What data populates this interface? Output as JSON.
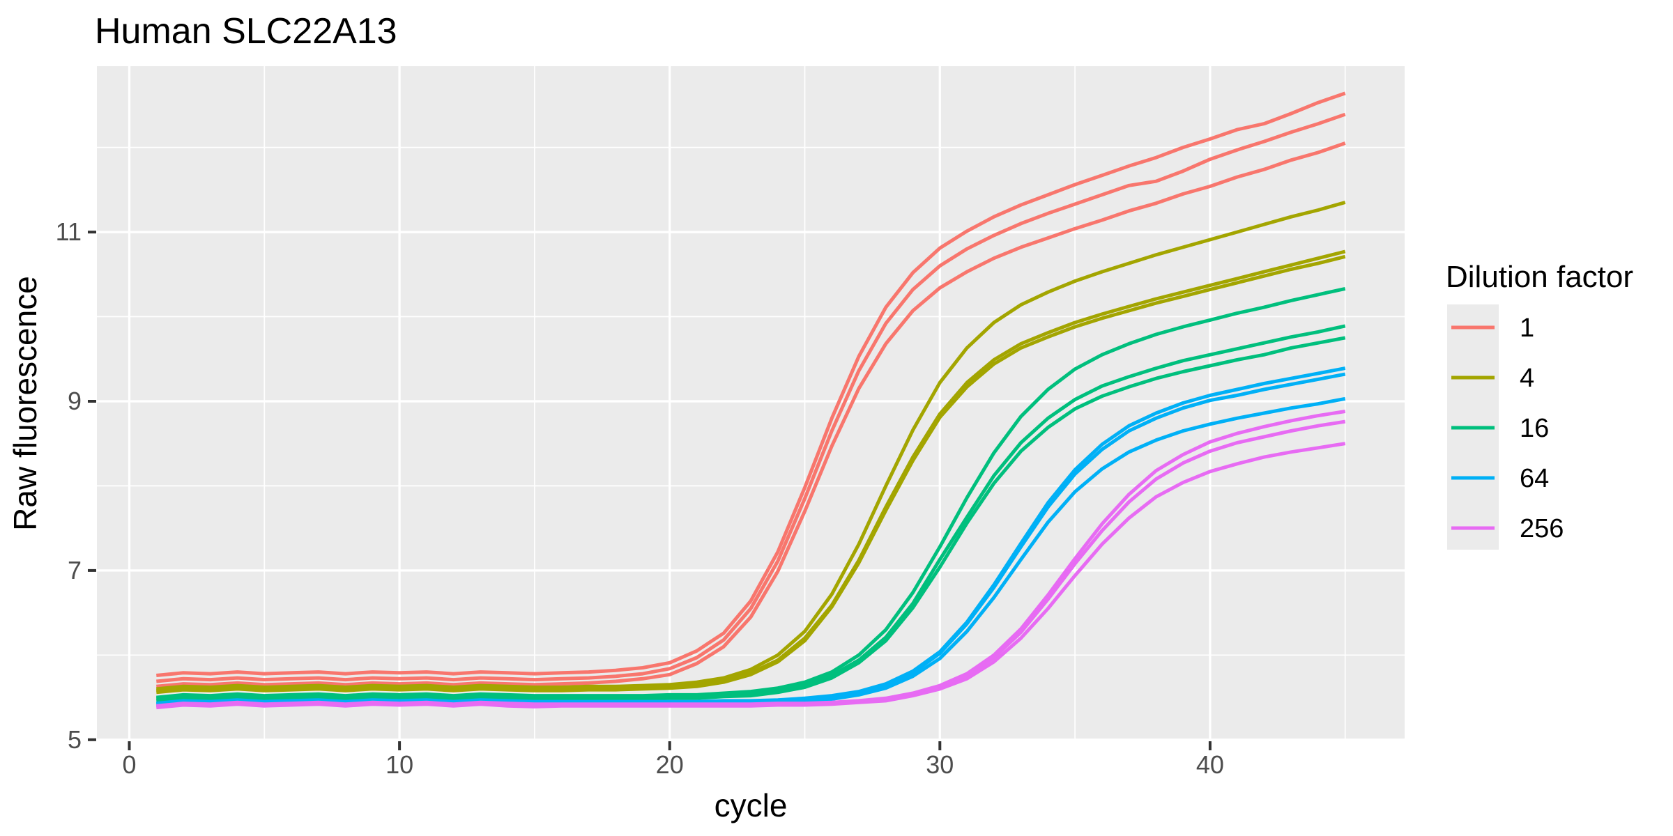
{
  "chart_data": {
    "type": "line",
    "title": "Human SLC22A13",
    "xlabel": "cycle",
    "ylabel": "Raw fluorescence",
    "x_major_ticks": [
      0,
      10,
      20,
      30,
      40
    ],
    "x_minor_ticks": [
      5,
      15,
      25,
      35,
      45
    ],
    "y_major_ticks": [
      5,
      7,
      9,
      11
    ],
    "y_minor_ticks": [
      6,
      8,
      10,
      12
    ],
    "xlim": [
      -1.2,
      47.2
    ],
    "ylim": [
      4.99,
      12.96
    ],
    "grid": "on",
    "panel_bg": "#EBEBEB",
    "grid_color": "#FFFFFF",
    "tick_mark_color": "#333333",
    "tick_label_color": "#4D4D4D",
    "legend": {
      "title": "Dilution factor",
      "position": "right",
      "key_bg": "#EBEBEB"
    },
    "cycles": [
      1,
      2,
      3,
      4,
      5,
      6,
      7,
      8,
      9,
      10,
      11,
      12,
      13,
      14,
      15,
      16,
      17,
      18,
      19,
      20,
      21,
      22,
      23,
      24,
      25,
      26,
      27,
      28,
      29,
      30,
      31,
      32,
      33,
      34,
      35,
      36,
      37,
      38,
      39,
      40,
      41,
      42,
      43,
      44,
      45
    ],
    "series": [
      {
        "name": "1",
        "color": "#F8766D",
        "replicates": [
          [
            5.76,
            5.79,
            5.78,
            5.8,
            5.78,
            5.79,
            5.8,
            5.78,
            5.8,
            5.79,
            5.8,
            5.78,
            5.8,
            5.79,
            5.78,
            5.79,
            5.8,
            5.82,
            5.85,
            5.91,
            6.05,
            6.26,
            6.64,
            7.22,
            7.98,
            8.8,
            9.53,
            10.11,
            10.52,
            10.81,
            11.01,
            11.18,
            11.32,
            11.44,
            11.56,
            11.67,
            11.78,
            11.88,
            12.0,
            12.1,
            12.21,
            12.28,
            12.4,
            12.53,
            12.64
          ],
          [
            5.69,
            5.72,
            5.71,
            5.73,
            5.71,
            5.72,
            5.73,
            5.71,
            5.73,
            5.72,
            5.73,
            5.71,
            5.73,
            5.72,
            5.71,
            5.72,
            5.73,
            5.75,
            5.78,
            5.84,
            5.97,
            6.18,
            6.55,
            7.11,
            7.85,
            8.65,
            9.36,
            9.92,
            10.32,
            10.6,
            10.8,
            10.96,
            11.1,
            11.22,
            11.33,
            11.44,
            11.55,
            11.6,
            11.72,
            11.86,
            11.97,
            12.07,
            12.18,
            12.28,
            12.39
          ],
          [
            5.63,
            5.66,
            5.65,
            5.67,
            5.65,
            5.66,
            5.67,
            5.65,
            5.67,
            5.66,
            5.67,
            5.65,
            5.67,
            5.66,
            5.65,
            5.66,
            5.67,
            5.69,
            5.72,
            5.77,
            5.9,
            6.1,
            6.45,
            6.99,
            7.7,
            8.47,
            9.15,
            9.68,
            10.07,
            10.34,
            10.53,
            10.69,
            10.82,
            10.93,
            11.04,
            11.14,
            11.25,
            11.34,
            11.45,
            11.54,
            11.65,
            11.74,
            11.85,
            11.94,
            12.05
          ]
        ]
      },
      {
        "name": "4",
        "color": "#A3A500",
        "replicates": [
          [
            5.6,
            5.63,
            5.62,
            5.64,
            5.62,
            5.63,
            5.64,
            5.62,
            5.64,
            5.63,
            5.64,
            5.62,
            5.64,
            5.63,
            5.62,
            5.62,
            5.63,
            5.63,
            5.64,
            5.65,
            5.68,
            5.73,
            5.83,
            6.0,
            6.28,
            6.72,
            7.31,
            8.0,
            8.66,
            9.22,
            9.63,
            9.93,
            10.14,
            10.29,
            10.42,
            10.53,
            10.63,
            10.73,
            10.82,
            10.91,
            11.0,
            11.09,
            11.18,
            11.26,
            11.35
          ],
          [
            5.58,
            5.61,
            5.6,
            5.62,
            5.6,
            5.61,
            5.62,
            5.6,
            5.62,
            5.61,
            5.62,
            5.6,
            5.62,
            5.61,
            5.6,
            5.6,
            5.61,
            5.61,
            5.62,
            5.63,
            5.65,
            5.7,
            5.79,
            5.94,
            6.2,
            6.59,
            7.12,
            7.75,
            8.34,
            8.85,
            9.22,
            9.49,
            9.68,
            9.81,
            9.93,
            10.03,
            10.12,
            10.21,
            10.29,
            10.37,
            10.45,
            10.53,
            10.61,
            10.69,
            10.77
          ],
          [
            5.56,
            5.59,
            5.58,
            5.6,
            5.58,
            5.59,
            5.6,
            5.58,
            5.6,
            5.59,
            5.6,
            5.58,
            5.6,
            5.59,
            5.58,
            5.58,
            5.59,
            5.59,
            5.6,
            5.61,
            5.63,
            5.68,
            5.77,
            5.92,
            6.17,
            6.57,
            7.09,
            7.71,
            8.3,
            8.81,
            9.17,
            9.44,
            9.63,
            9.76,
            9.88,
            9.98,
            10.07,
            10.16,
            10.24,
            10.32,
            10.4,
            10.48,
            10.56,
            10.63,
            10.71
          ]
        ]
      },
      {
        "name": "16",
        "color": "#00BF7D",
        "replicates": [
          [
            5.5,
            5.53,
            5.52,
            5.54,
            5.52,
            5.53,
            5.54,
            5.52,
            5.54,
            5.53,
            5.54,
            5.52,
            5.54,
            5.53,
            5.52,
            5.52,
            5.52,
            5.52,
            5.52,
            5.53,
            5.53,
            5.55,
            5.57,
            5.61,
            5.68,
            5.8,
            6.0,
            6.3,
            6.74,
            7.28,
            7.86,
            8.39,
            8.82,
            9.14,
            9.38,
            9.55,
            9.68,
            9.79,
            9.88,
            9.96,
            10.04,
            10.11,
            10.19,
            10.26,
            10.33
          ],
          [
            5.48,
            5.51,
            5.5,
            5.52,
            5.5,
            5.51,
            5.52,
            5.5,
            5.52,
            5.51,
            5.52,
            5.5,
            5.52,
            5.51,
            5.5,
            5.5,
            5.5,
            5.5,
            5.5,
            5.51,
            5.51,
            5.53,
            5.55,
            5.58,
            5.65,
            5.76,
            5.94,
            6.21,
            6.61,
            7.13,
            7.63,
            8.12,
            8.51,
            8.8,
            9.02,
            9.18,
            9.29,
            9.39,
            9.48,
            9.55,
            9.62,
            9.69,
            9.76,
            9.82,
            9.89
          ],
          [
            5.46,
            5.49,
            5.48,
            5.5,
            5.48,
            5.49,
            5.5,
            5.48,
            5.5,
            5.49,
            5.5,
            5.48,
            5.5,
            5.49,
            5.48,
            5.48,
            5.48,
            5.48,
            5.48,
            5.49,
            5.49,
            5.51,
            5.52,
            5.56,
            5.62,
            5.73,
            5.91,
            6.17,
            6.56,
            7.04,
            7.56,
            8.03,
            8.41,
            8.69,
            8.91,
            9.06,
            9.17,
            9.27,
            9.35,
            9.42,
            9.49,
            9.55,
            9.63,
            9.69,
            9.75
          ]
        ]
      },
      {
        "name": "64",
        "color": "#00B0F6",
        "replicates": [
          [
            5.43,
            5.46,
            5.45,
            5.47,
            5.45,
            5.46,
            5.47,
            5.45,
            5.47,
            5.46,
            5.47,
            5.45,
            5.47,
            5.46,
            5.45,
            5.45,
            5.45,
            5.45,
            5.45,
            5.45,
            5.45,
            5.46,
            5.46,
            5.47,
            5.49,
            5.52,
            5.57,
            5.66,
            5.81,
            6.04,
            6.39,
            6.83,
            7.32,
            7.8,
            8.19,
            8.49,
            8.71,
            8.86,
            8.98,
            9.07,
            9.14,
            9.21,
            9.27,
            9.33,
            9.39
          ],
          [
            5.42,
            5.45,
            5.44,
            5.46,
            5.44,
            5.45,
            5.46,
            5.44,
            5.46,
            5.45,
            5.46,
            5.44,
            5.46,
            5.45,
            5.44,
            5.44,
            5.44,
            5.44,
            5.44,
            5.44,
            5.44,
            5.45,
            5.45,
            5.46,
            5.48,
            5.51,
            5.56,
            5.65,
            5.79,
            6.02,
            6.37,
            6.8,
            7.28,
            7.75,
            8.14,
            8.43,
            8.65,
            8.8,
            8.92,
            9.01,
            9.07,
            9.14,
            9.2,
            9.26,
            9.32
          ],
          [
            5.4,
            5.43,
            5.42,
            5.44,
            5.42,
            5.43,
            5.44,
            5.42,
            5.44,
            5.43,
            5.44,
            5.42,
            5.44,
            5.43,
            5.42,
            5.42,
            5.42,
            5.42,
            5.42,
            5.42,
            5.42,
            5.43,
            5.43,
            5.44,
            5.46,
            5.48,
            5.53,
            5.61,
            5.75,
            5.96,
            6.28,
            6.68,
            7.13,
            7.57,
            7.93,
            8.2,
            8.4,
            8.54,
            8.65,
            8.73,
            8.8,
            8.86,
            8.92,
            8.97,
            9.03
          ]
        ]
      },
      {
        "name": "256",
        "color": "#E76BF3",
        "replicates": [
          [
            5.4,
            5.43,
            5.42,
            5.44,
            5.42,
            5.43,
            5.44,
            5.42,
            5.44,
            5.43,
            5.44,
            5.42,
            5.44,
            5.43,
            5.42,
            5.42,
            5.42,
            5.42,
            5.42,
            5.42,
            5.42,
            5.42,
            5.42,
            5.43,
            5.43,
            5.44,
            5.46,
            5.49,
            5.55,
            5.64,
            5.78,
            6.0,
            6.31,
            6.71,
            7.14,
            7.55,
            7.9,
            8.18,
            8.37,
            8.52,
            8.62,
            8.7,
            8.77,
            8.83,
            8.88
          ],
          [
            5.39,
            5.42,
            5.41,
            5.43,
            5.41,
            5.42,
            5.43,
            5.41,
            5.43,
            5.42,
            5.43,
            5.41,
            5.43,
            5.42,
            5.41,
            5.41,
            5.41,
            5.41,
            5.41,
            5.41,
            5.41,
            5.41,
            5.41,
            5.42,
            5.42,
            5.43,
            5.45,
            5.48,
            5.54,
            5.62,
            5.76,
            5.97,
            6.27,
            6.66,
            7.08,
            7.47,
            7.81,
            8.08,
            8.27,
            8.41,
            8.51,
            8.58,
            8.65,
            8.71,
            8.76
          ],
          [
            5.38,
            5.41,
            5.4,
            5.42,
            5.4,
            5.41,
            5.42,
            5.4,
            5.42,
            5.41,
            5.42,
            5.4,
            5.42,
            5.4,
            5.39,
            5.4,
            5.4,
            5.4,
            5.4,
            5.4,
            5.4,
            5.4,
            5.4,
            5.41,
            5.41,
            5.42,
            5.44,
            5.46,
            5.52,
            5.6,
            5.72,
            5.92,
            6.2,
            6.55,
            6.94,
            7.31,
            7.62,
            7.87,
            8.04,
            8.17,
            8.26,
            8.34,
            8.4,
            8.45,
            8.5
          ]
        ]
      }
    ]
  }
}
